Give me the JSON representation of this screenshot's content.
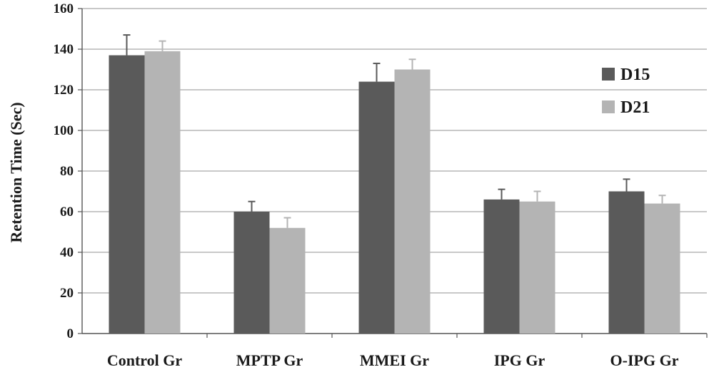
{
  "chart_data": {
    "type": "bar",
    "title": "",
    "xlabel": "",
    "ylabel": "Retention Time (Sec)",
    "ylim": [
      0,
      160
    ],
    "yticks": [
      0,
      20,
      40,
      60,
      80,
      100,
      120,
      140,
      160
    ],
    "grid": true,
    "legend_position": "top-right",
    "categories": [
      "Control Gr",
      "MPTP Gr",
      "MMEI Gr",
      "IPG Gr",
      "O-IPG Gr"
    ],
    "series": [
      {
        "name": "D15",
        "color": "#5a5a5a",
        "values": [
          137,
          60,
          124,
          66,
          70
        ],
        "errors": [
          10,
          5,
          9,
          5,
          6
        ]
      },
      {
        "name": "D21",
        "color": "#b4b4b4",
        "values": [
          139,
          52,
          130,
          65,
          64
        ],
        "errors": [
          5,
          5,
          5,
          5,
          4
        ]
      }
    ]
  }
}
